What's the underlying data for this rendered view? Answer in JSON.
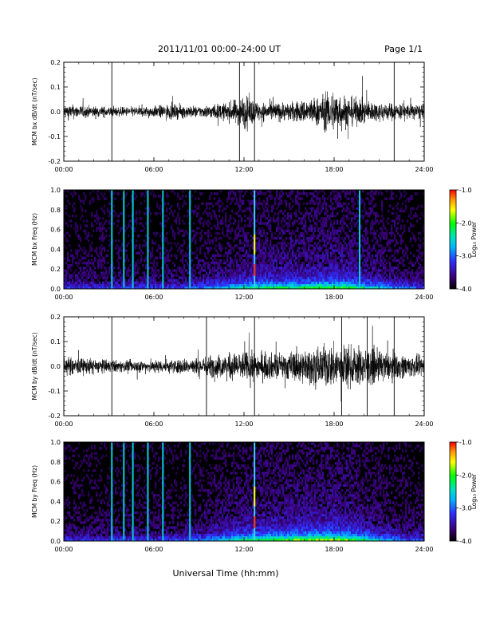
{
  "header": {
    "title": "2011/11/01  00:00–24:00 UT",
    "page": "Page 1/1"
  },
  "chart_data": [
    {
      "type": "line",
      "ylabel": "MCM bx dB/dt (nT/sec)",
      "xlim": [
        0,
        24
      ],
      "ylim": [
        -0.2,
        0.2
      ],
      "x_ticks": [
        "00:00",
        "06:00",
        "12:00",
        "18:00",
        "24:00"
      ],
      "y_ticks": [
        "-0.2",
        "-0.1",
        "0.0",
        "0.1",
        "0.2"
      ],
      "spikes_hours": [
        3.2,
        11.7,
        12.7,
        22.0
      ],
      "activity_profile": [
        {
          "h": 0,
          "amp": 0.04
        },
        {
          "h": 2,
          "amp": 0.03
        },
        {
          "h": 4,
          "amp": 0.025
        },
        {
          "h": 6,
          "amp": 0.03
        },
        {
          "h": 7,
          "amp": 0.04
        },
        {
          "h": 9,
          "amp": 0.03
        },
        {
          "h": 11,
          "amp": 0.05
        },
        {
          "h": 12,
          "amp": 0.09
        },
        {
          "h": 13,
          "amp": 0.05
        },
        {
          "h": 15,
          "amp": 0.05
        },
        {
          "h": 17,
          "amp": 0.08
        },
        {
          "h": 18,
          "amp": 0.12
        },
        {
          "h": 19,
          "amp": 0.08
        },
        {
          "h": 21,
          "amp": 0.05
        },
        {
          "h": 24,
          "amp": 0.04
        }
      ]
    },
    {
      "type": "heatmap",
      "ylabel": "MCM bx Freq (Hz)",
      "xlim": [
        0,
        24
      ],
      "ylim": [
        0.0,
        1.0
      ],
      "x_ticks": [
        "00:00",
        "06:00",
        "12:00",
        "18:00",
        "24:00"
      ],
      "y_ticks": [
        "0.0",
        "0.2",
        "0.4",
        "0.6",
        "0.8",
        "1.0"
      ],
      "colorbar": {
        "label": "Log₁₀ Power",
        "ticks": [
          "-1.0",
          "-2.0",
          "-3.0",
          "-4.0"
        ],
        "range": [
          -4.0,
          -1.0
        ]
      },
      "vertical_lines_hours": [
        3.2,
        4.0,
        4.6,
        5.6,
        6.6,
        8.4,
        12.7,
        19.7
      ]
    },
    {
      "type": "line",
      "ylabel": "MCM by dB/dt (nT/sec)",
      "xlim": [
        0,
        24
      ],
      "ylim": [
        -0.2,
        0.2
      ],
      "x_ticks": [
        "00:00",
        "06:00",
        "12:00",
        "18:00",
        "24:00"
      ],
      "y_ticks": [
        "-0.2",
        "-0.1",
        "0.0",
        "0.1",
        "0.2"
      ],
      "spikes_hours": [
        3.2,
        9.5,
        12.7,
        18.5,
        20.2,
        22.0
      ],
      "activity_profile": [
        {
          "h": 0,
          "amp": 0.05
        },
        {
          "h": 2,
          "amp": 0.04
        },
        {
          "h": 4,
          "amp": 0.03
        },
        {
          "h": 6,
          "amp": 0.035
        },
        {
          "h": 8,
          "amp": 0.04
        },
        {
          "h": 10,
          "amp": 0.06
        },
        {
          "h": 12,
          "amp": 0.08
        },
        {
          "h": 14,
          "amp": 0.07
        },
        {
          "h": 16,
          "amp": 0.09
        },
        {
          "h": 18,
          "amp": 0.12
        },
        {
          "h": 20,
          "amp": 0.1
        },
        {
          "h": 22,
          "amp": 0.07
        },
        {
          "h": 24,
          "amp": 0.05
        }
      ]
    },
    {
      "type": "heatmap",
      "ylabel": "MCM by Freq (Hz)",
      "xlim": [
        0,
        24
      ],
      "ylim": [
        0.0,
        1.0
      ],
      "x_ticks": [
        "00:00",
        "06:00",
        "12:00",
        "18:00",
        "24:00"
      ],
      "y_ticks": [
        "0.0",
        "0.2",
        "0.4",
        "0.6",
        "0.8",
        "1.0"
      ],
      "colorbar": {
        "label": "Log₁₀ Power",
        "ticks": [
          "-1.0",
          "-2.0",
          "-3.0",
          "-4.0"
        ],
        "range": [
          -4.0,
          -1.0
        ]
      },
      "vertical_lines_hours": [
        3.2,
        4.0,
        4.6,
        5.6,
        6.6,
        8.4,
        12.7
      ]
    }
  ],
  "xlabel": "Universal Time (hh:mm)",
  "colors": {
    "trace": "#000000",
    "heatmap_bg": "#000000"
  }
}
